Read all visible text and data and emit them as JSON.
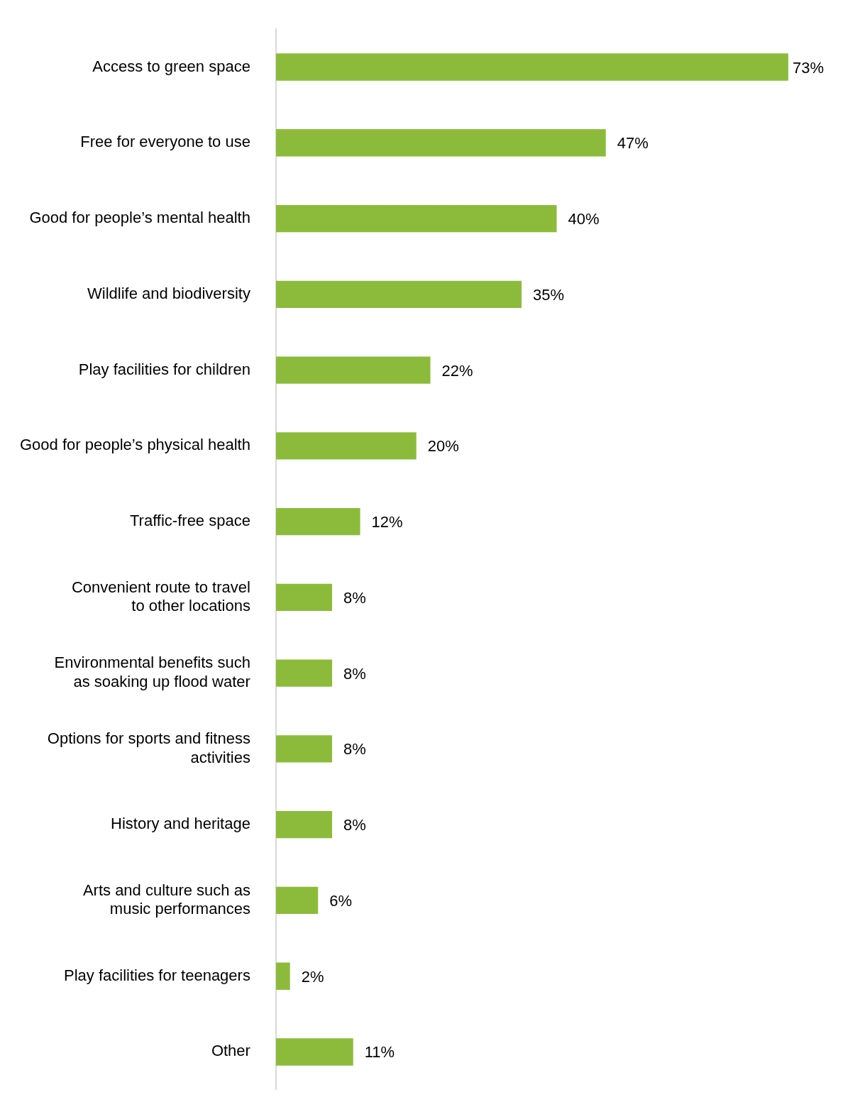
{
  "chart_data": {
    "type": "bar",
    "orientation": "horizontal",
    "categories": [
      "Access to green space",
      "Free for everyone to use",
      "Good for people’s mental health",
      "Wildlife and biodiversity",
      "Play facilities for children",
      "Good for people’s physical health",
      "Traffic-free space",
      "Convenient route to travel\nto other locations",
      "Environmental benefits such\nas soaking up flood water",
      "Options for sports and fitness\nactivities",
      "History and heritage",
      "Arts and culture such as\nmusic performances",
      "Play facilities for teenagers",
      "Other"
    ],
    "values": [
      73,
      47,
      40,
      35,
      22,
      20,
      12,
      8,
      8,
      8,
      8,
      6,
      2,
      11
    ],
    "value_labels": [
      "73%",
      "47%",
      "40%",
      "35%",
      "22%",
      "20%",
      "12%",
      "8%",
      "8%",
      "8%",
      "8%",
      "6%",
      "2%",
      "11%"
    ],
    "color": "#8cbb3c",
    "grid": false,
    "legend": false,
    "tick_labels": "y"
  }
}
